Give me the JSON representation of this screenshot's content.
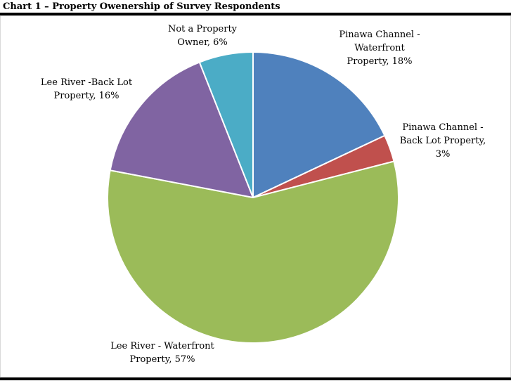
{
  "chart_data": {
    "type": "pie",
    "title": "Chart 1 – Property Owenership of Survey Respondents",
    "slices": [
      {
        "label": "Pinawa Channel - Waterfront Property",
        "label_lines": [
          "Pinawa Channel -",
          "Waterfront",
          "Property, 18%"
        ],
        "value": 18,
        "color": "#4f81bd"
      },
      {
        "label": "Pinawa Channel - Back Lot Property",
        "label_lines": [
          "Pinawa Channel -",
          "Back Lot Property,",
          "3%"
        ],
        "value": 3,
        "color": "#c0504d"
      },
      {
        "label": "Lee River - Waterfront Property",
        "label_lines": [
          "Lee River - Waterfront",
          "Property, 57%"
        ],
        "value": 57,
        "color": "#9bbb59"
      },
      {
        "label": "Lee River -Back Lot Property",
        "label_lines": [
          "Lee River -Back Lot",
          "Property, 16%"
        ],
        "value": 16,
        "color": "#8064a2"
      },
      {
        "label": "Not a Property Owner",
        "label_lines": [
          "Not a Property",
          "Owner, 6%"
        ],
        "value": 6,
        "color": "#4bacc6"
      }
    ],
    "start_angle": "12 o'clock",
    "direction": "clockwise",
    "legend": "none"
  }
}
